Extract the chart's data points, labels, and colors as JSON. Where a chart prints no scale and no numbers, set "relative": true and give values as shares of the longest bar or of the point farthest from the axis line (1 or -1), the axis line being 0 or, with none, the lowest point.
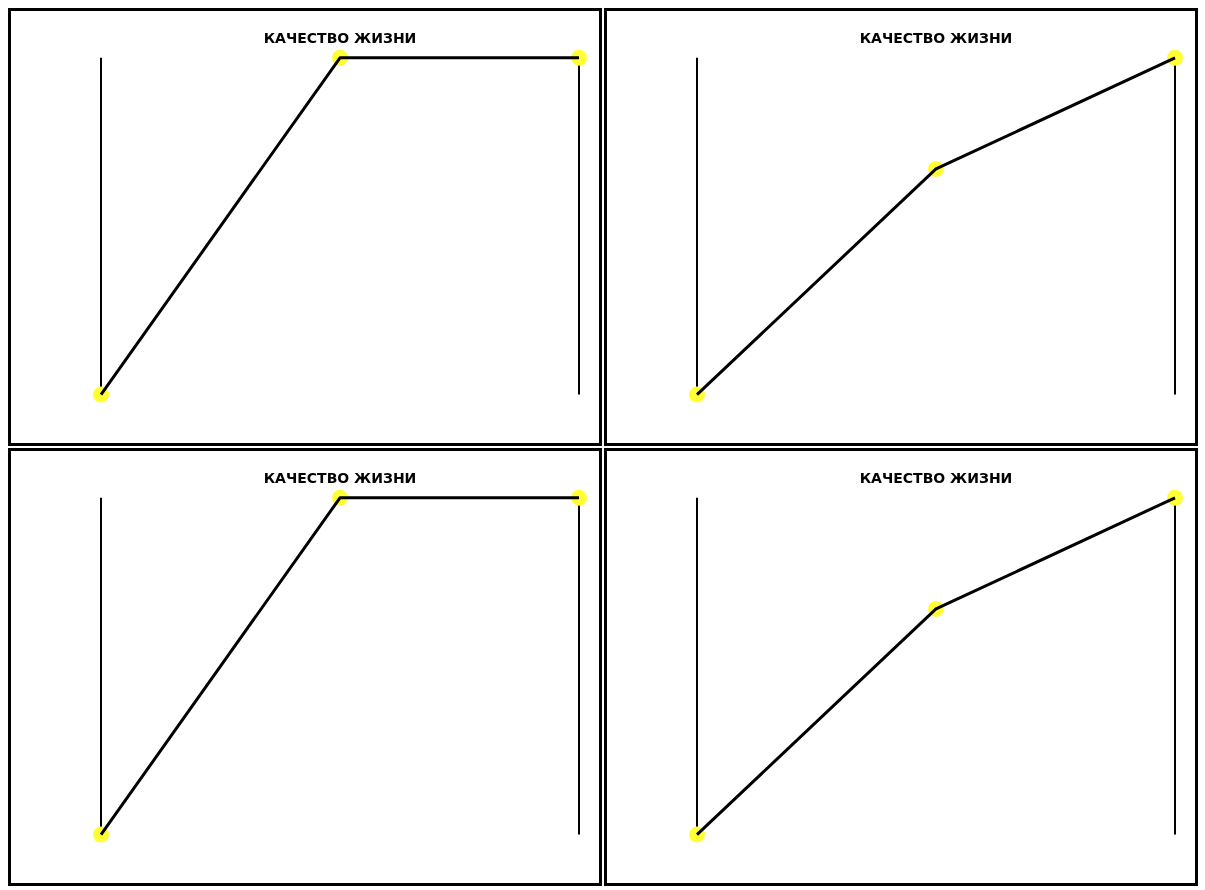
{
  "chart_data": [
    {
      "type": "line",
      "title": "КАЧЕСТВО ЖИЗНИ",
      "categories": [
        null,
        null,
        null
      ],
      "relative": true,
      "marker": "circle",
      "legend": false,
      "grid": false,
      "series": [
        {
          "color": "#000000",
          "values": [
            0,
            1,
            1
          ]
        }
      ]
    },
    {
      "type": "line",
      "title": "КАЧЕСТВО ЖИЗНИ",
      "categories": [
        null,
        null,
        null
      ],
      "relative": true,
      "marker": "circle",
      "legend": false,
      "grid": false,
      "series": [
        {
          "color": "#000000",
          "values": [
            0,
            0.67,
            1
          ]
        }
      ]
    },
    {
      "type": "line",
      "title": "КАЧЕСТВО ЖИЗНИ",
      "categories": [
        null,
        null,
        null
      ],
      "relative": true,
      "marker": "circle",
      "legend": false,
      "grid": false,
      "series": [
        {
          "color": "#000000",
          "values": [
            0,
            1,
            1
          ]
        }
      ]
    },
    {
      "type": "line",
      "title": "КАЧЕСТВО ЖИЗНИ",
      "categories": [
        null,
        null,
        null
      ],
      "relative": true,
      "marker": "circle",
      "legend": false,
      "grid": false,
      "series": [
        {
          "color": "#000000",
          "values": [
            0,
            0.67,
            1
          ]
        }
      ]
    }
  ]
}
